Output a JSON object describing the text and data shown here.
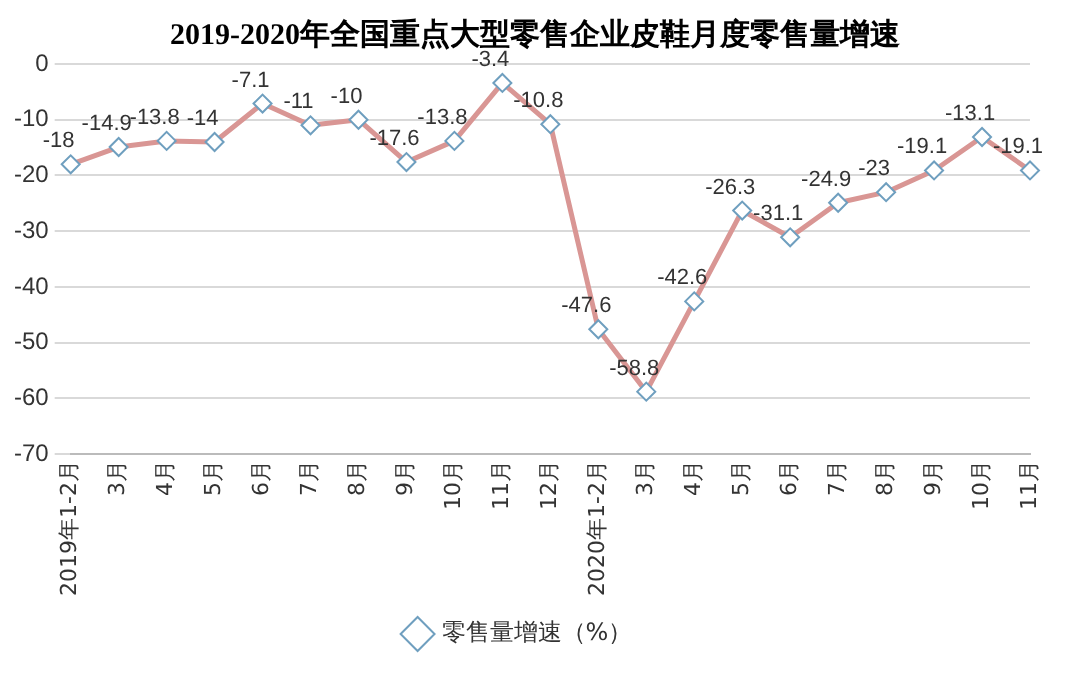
{
  "chart_data": {
    "type": "line",
    "title": "2019-2020年全国重点大型零售企业皮鞋月度零售量增速",
    "categories": [
      "2019年1-2月",
      "3月",
      "4月",
      "5月",
      "6月",
      "7月",
      "8月",
      "9月",
      "10月",
      "11月",
      "12月",
      "2020年1-2月",
      "3月",
      "4月",
      "5月",
      "6月",
      "7月",
      "8月",
      "9月",
      "10月",
      "11月"
    ],
    "series": [
      {
        "name": "零售量增速（%）",
        "color": "#d99694",
        "values": [
          -18,
          -14.9,
          -13.8,
          -14,
          -7.1,
          -11,
          -10,
          -17.6,
          -13.8,
          -3.4,
          -10.8,
          -47.6,
          -58.8,
          -42.6,
          -26.3,
          -31.1,
          -24.9,
          -23,
          -19.1,
          -13.1,
          -19.1
        ]
      }
    ],
    "ylim": [
      -70,
      0
    ],
    "yticks": [
      -70,
      -60,
      -50,
      -40,
      -30,
      -20,
      -10,
      0
    ],
    "grid": "y",
    "legend": "bottom",
    "marker": "diamond",
    "line_style": "solid",
    "data_labels": true
  }
}
